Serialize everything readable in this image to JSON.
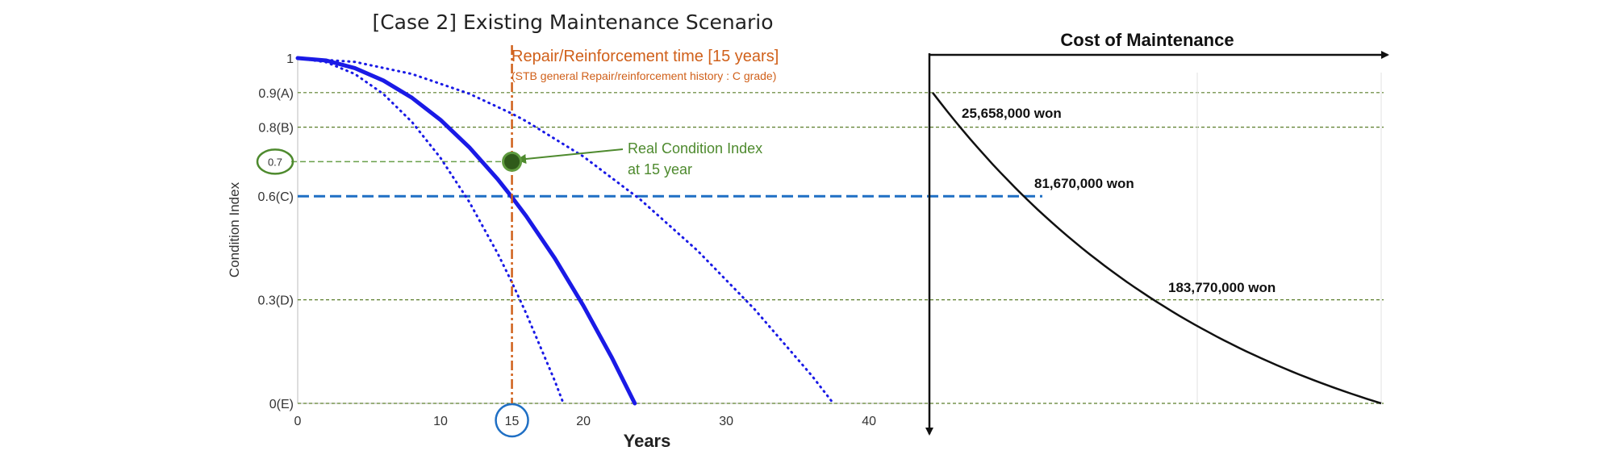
{
  "chart_data": [
    {
      "type": "line",
      "title": "[Case 2] Existing Maintenance Scenario",
      "xlabel": "Years",
      "ylabel": "Condition Index",
      "xlim": [
        0,
        44
      ],
      "ylim": [
        0,
        1
      ],
      "x_ticks": [
        0,
        10,
        15,
        20,
        30,
        40
      ],
      "x_tick_labels": [
        "0",
        "10",
        "15",
        "20",
        "30",
        "40"
      ],
      "y_ticks": [
        {
          "value": 1,
          "label": "1"
        },
        {
          "value": 0.9,
          "label": "0.9(A)"
        },
        {
          "value": 0.8,
          "label": "0.8(B)"
        },
        {
          "value": 0.7,
          "label": "0.7"
        },
        {
          "value": 0.6,
          "label": "0.6(C)"
        },
        {
          "value": 0.3,
          "label": "0.3(D)"
        },
        {
          "value": 0,
          "label": "0(E)"
        }
      ],
      "grade_lines": [
        0.9,
        0.8,
        0.3,
        0
      ],
      "threshold_line": 0.6,
      "real_index_line": 0.7,
      "series": [
        {
          "style": "solid",
          "x": [
            0,
            2,
            4,
            6,
            8,
            10,
            12,
            14,
            15,
            16,
            18,
            20,
            22,
            23.6
          ],
          "y": [
            1.0,
            0.993,
            0.971,
            0.935,
            0.885,
            0.821,
            0.742,
            0.649,
            0.597,
            0.542,
            0.42,
            0.283,
            0.132,
            0.0
          ]
        },
        {
          "style": "dotted",
          "x": [
            0,
            2,
            4,
            6,
            8,
            10,
            12,
            14,
            15,
            16,
            18,
            18.6
          ],
          "y": [
            1.0,
            0.988,
            0.954,
            0.896,
            0.815,
            0.711,
            0.584,
            0.434,
            0.35,
            0.26,
            0.065,
            0.0
          ]
        },
        {
          "style": "dotted",
          "x": [
            0,
            4,
            8,
            12,
            15,
            16,
            20,
            24,
            28,
            32,
            36,
            37.5
          ],
          "y": [
            1.0,
            0.989,
            0.954,
            0.897,
            0.839,
            0.817,
            0.715,
            0.59,
            0.442,
            0.272,
            0.08,
            0.0
          ]
        }
      ],
      "repair_time": 15,
      "repair_label": "Repair/Reinforcement time [15 years]",
      "repair_sublabel": "(STB general Repair/reinforcement history : C grade)",
      "real_point": {
        "x": 15,
        "y": 0.7
      },
      "annotation_line1": "Real Condition Index",
      "annotation_line2": "at 15 year"
    },
    {
      "type": "line",
      "title": "Cost of Maintenance",
      "points": [
        {
          "y": 0.9,
          "label": "25,658,000 won"
        },
        {
          "y": 0.6,
          "label": "81,670,000 won"
        },
        {
          "y": 0.3,
          "label": "183,770,000 won"
        }
      ]
    }
  ]
}
